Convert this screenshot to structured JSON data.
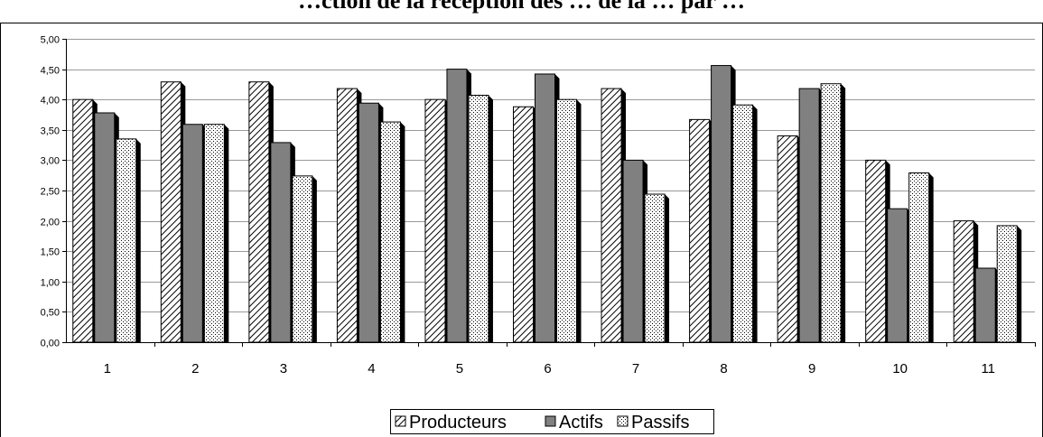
{
  "chart_data": {
    "type": "bar",
    "title": "…ction de la réception des … de la … par …",
    "xlabel": "",
    "ylabel": "",
    "categories": [
      "1",
      "2",
      "3",
      "4",
      "5",
      "6",
      "7",
      "8",
      "9",
      "10",
      "11"
    ],
    "ylim": [
      0,
      5
    ],
    "y_ticks": [
      "0,00",
      "0,50",
      "1,00",
      "1,50",
      "2,00",
      "2,50",
      "3,00",
      "3,50",
      "4,00",
      "4,50",
      "5,00"
    ],
    "grid": true,
    "legend_position": "bottom",
    "series": [
      {
        "name": "Producteurs",
        "pattern": "diagonal-hatch",
        "color": "#ffffff",
        "values": [
          4.0,
          4.29,
          4.29,
          4.18,
          4.0,
          3.88,
          4.18,
          3.67,
          3.4,
          3.0,
          2.0
        ]
      },
      {
        "name": "Actifs",
        "pattern": "solid",
        "color": "#808080",
        "values": [
          3.78,
          3.59,
          3.29,
          3.94,
          4.5,
          4.42,
          3.0,
          4.56,
          4.18,
          2.2,
          1.22
        ]
      },
      {
        "name": "Passifs",
        "pattern": "dotted",
        "color": "#ffffff",
        "values": [
          3.35,
          3.59,
          2.74,
          3.63,
          4.07,
          4.0,
          2.44,
          3.91,
          4.26,
          2.79,
          1.92
        ]
      }
    ]
  }
}
